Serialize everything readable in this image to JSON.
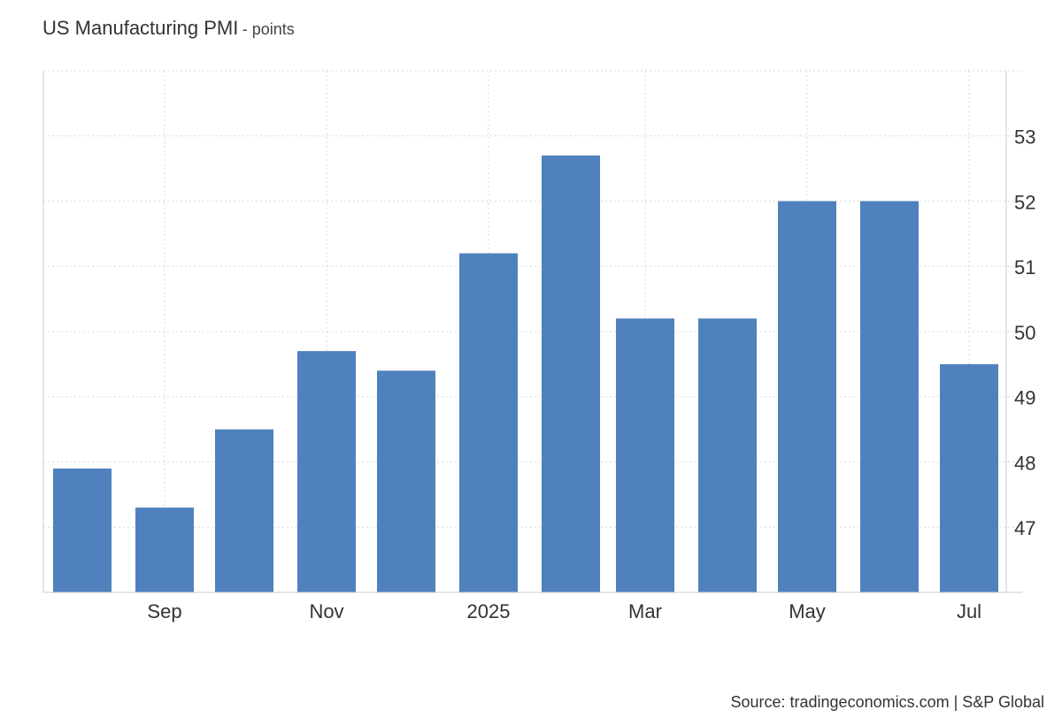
{
  "header": {
    "title": "US Manufacturing PMI",
    "unit": "- points"
  },
  "footer": {
    "source": "Source: tradingeconomics.com | S&P Global"
  },
  "colors": {
    "bar": "#4f81bd",
    "grid": "#d9d9d9",
    "axis": "#cccccc",
    "text": "#333333"
  },
  "chart_data": {
    "type": "bar",
    "title": "US Manufacturing PMI",
    "unit": "points",
    "categories": [
      "2024-08",
      "2024-09",
      "2024-10",
      "2024-11",
      "2024-12",
      "2025-01",
      "2025-02",
      "2025-03",
      "2025-04",
      "2025-05",
      "2025-06",
      "2025-07"
    ],
    "values": [
      47.9,
      47.3,
      48.5,
      49.7,
      49.4,
      51.2,
      52.7,
      50.2,
      50.2,
      52.0,
      52.0,
      49.5
    ],
    "x_tick_labels": [
      {
        "category": "2024-09",
        "label": "Sep"
      },
      {
        "category": "2024-11",
        "label": "Nov"
      },
      {
        "category": "2025-01",
        "label": "2025"
      },
      {
        "category": "2025-03",
        "label": "Mar"
      },
      {
        "category": "2025-05",
        "label": "May"
      },
      {
        "category": "2025-07",
        "label": "Jul"
      }
    ],
    "y_ticks": [
      47,
      48,
      49,
      50,
      51,
      52,
      53
    ],
    "ylim": [
      46,
      54
    ],
    "y_axis_side": "right",
    "grid": true,
    "legend": "none"
  }
}
